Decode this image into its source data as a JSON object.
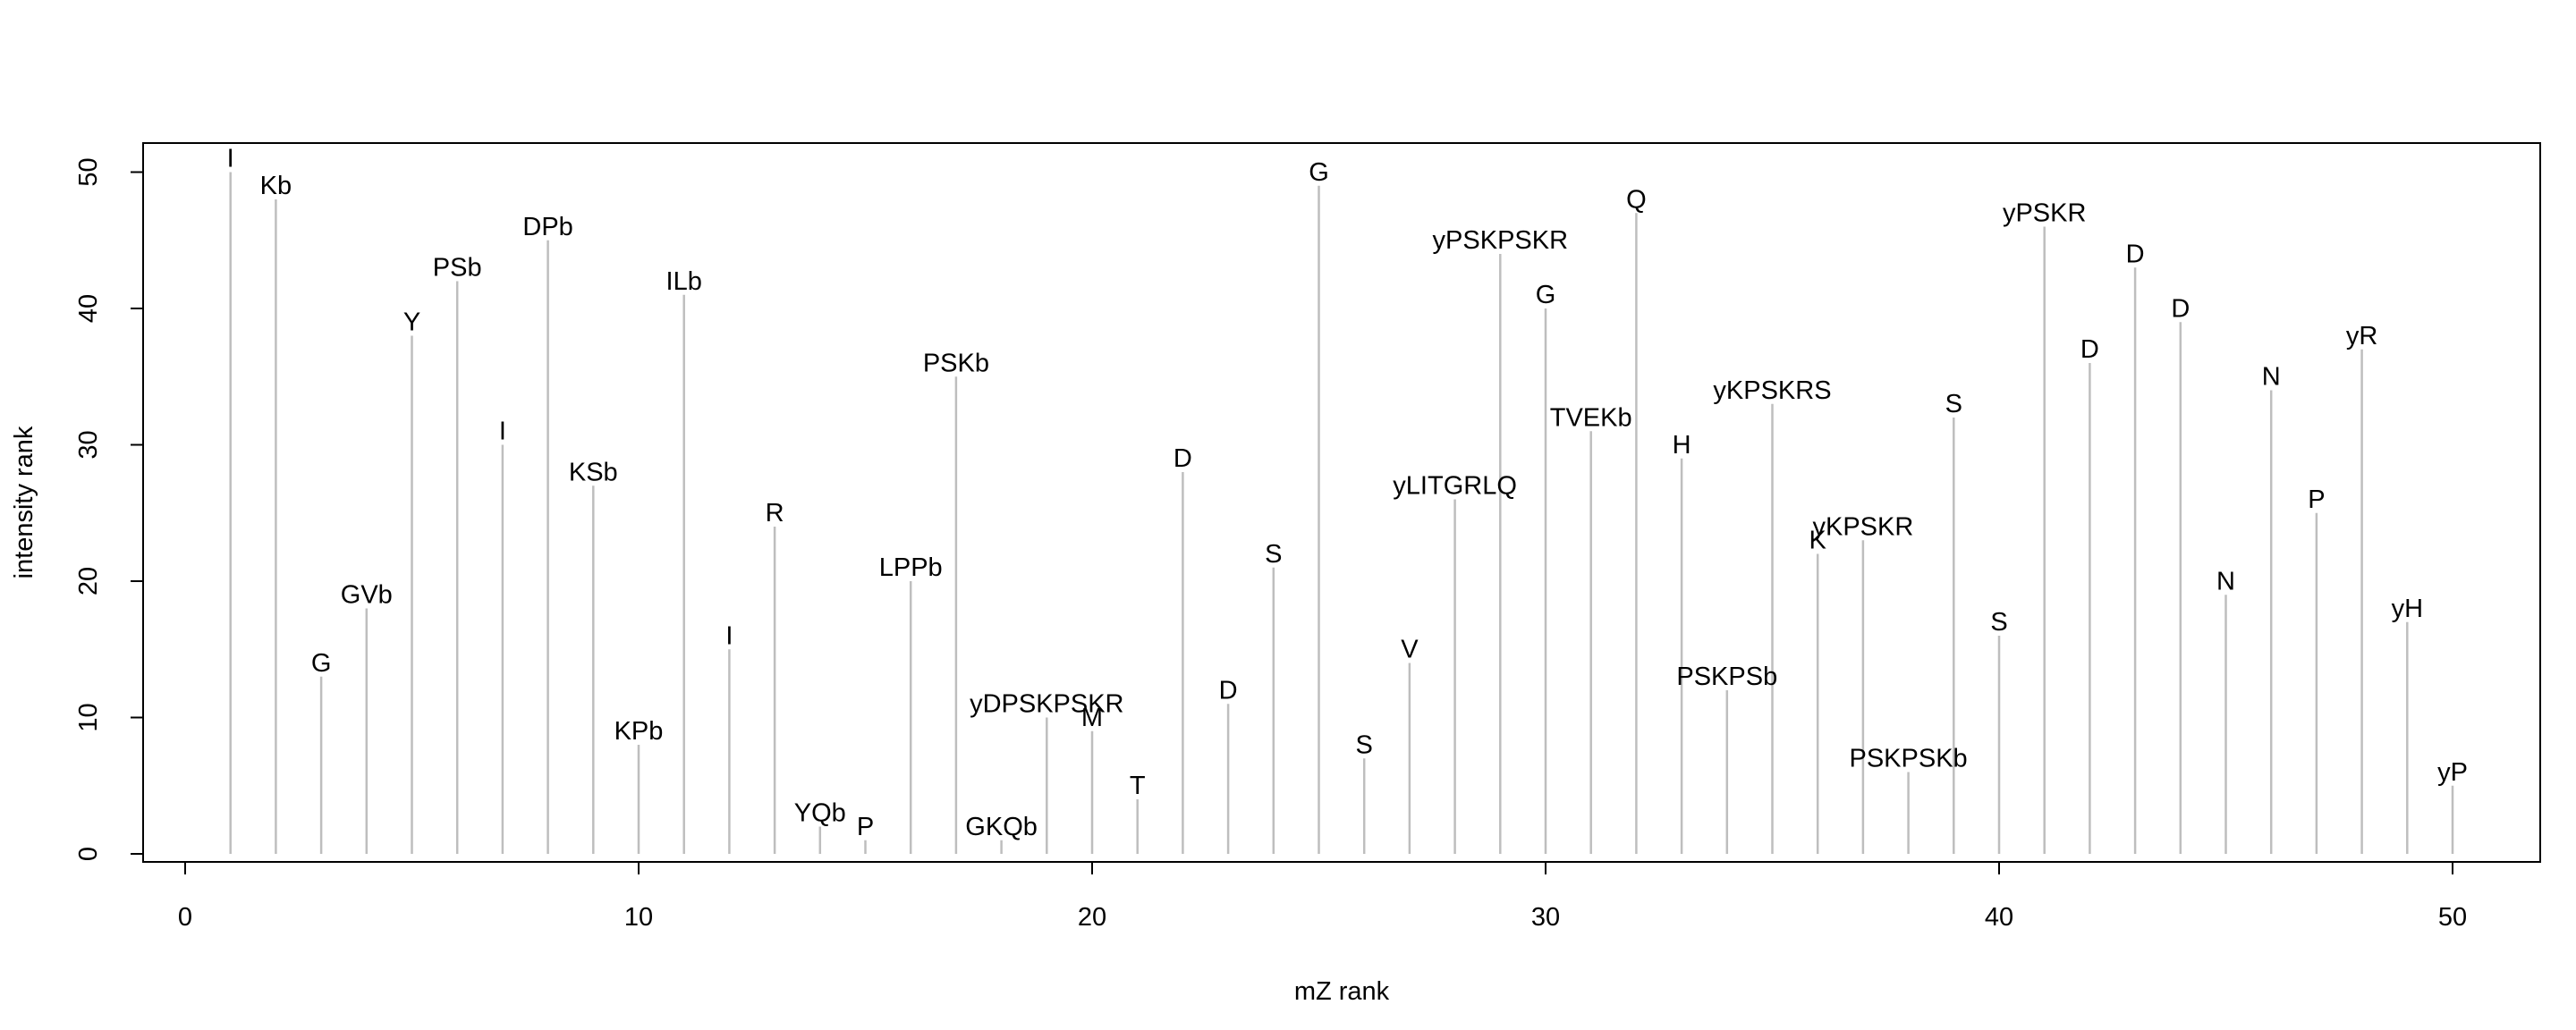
{
  "chart_data": {
    "type": "bar",
    "title": "",
    "xlabel": "mZ rank",
    "ylabel": "intensity rank",
    "xlim": [
      0,
      52
    ],
    "ylim": [
      0,
      50
    ],
    "x_ticks": [
      0,
      10,
      20,
      30,
      40,
      50
    ],
    "y_ticks": [
      0,
      10,
      20,
      30,
      40,
      50
    ],
    "grid": false,
    "bar_color": "#bebebe",
    "x": [
      1,
      2,
      3,
      4,
      5,
      6,
      7,
      8,
      9,
      10,
      11,
      12,
      13,
      14,
      15,
      16,
      17,
      18,
      19,
      20,
      21,
      22,
      23,
      24,
      25,
      26,
      27,
      28,
      29,
      30,
      31,
      32,
      33,
      34,
      35,
      36,
      37,
      38,
      39,
      40,
      41,
      42,
      43,
      44,
      45,
      46,
      47,
      48,
      49,
      50
    ],
    "values": [
      50,
      48,
      13,
      18,
      38,
      42,
      30,
      45,
      27,
      8,
      41,
      15,
      24,
      2,
      1,
      20,
      35,
      1,
      10,
      9,
      4,
      28,
      11,
      21,
      49,
      7,
      14,
      26,
      44,
      40,
      31,
      47,
      29,
      12,
      33,
      22,
      23,
      6,
      32,
      16,
      46,
      36,
      43,
      39,
      19,
      34,
      25,
      37,
      17,
      5
    ],
    "labels": [
      "I",
      "Kb",
      "G",
      "GVb",
      "Y",
      "PSb",
      "I",
      "DPb",
      "KSb",
      "KPb",
      "ILb",
      "I",
      "R",
      "YQb",
      "P",
      "LPPb",
      "PSKb",
      "GKQb",
      "yDPSKPSKR",
      "M",
      "T",
      "D",
      "D",
      "S",
      "G",
      "S",
      "V",
      "yLITGRLQ",
      "yPSKPSKR",
      "G",
      "TVEKb",
      "Q",
      "H",
      "PSKPSb",
      "yKPSKRS",
      "K",
      "yKPSKR",
      "PSKPSKb",
      "S",
      "S",
      "yPSKR",
      "D",
      "D",
      "D",
      "N",
      "N",
      "P",
      "yR",
      "yH",
      "yP"
    ]
  }
}
